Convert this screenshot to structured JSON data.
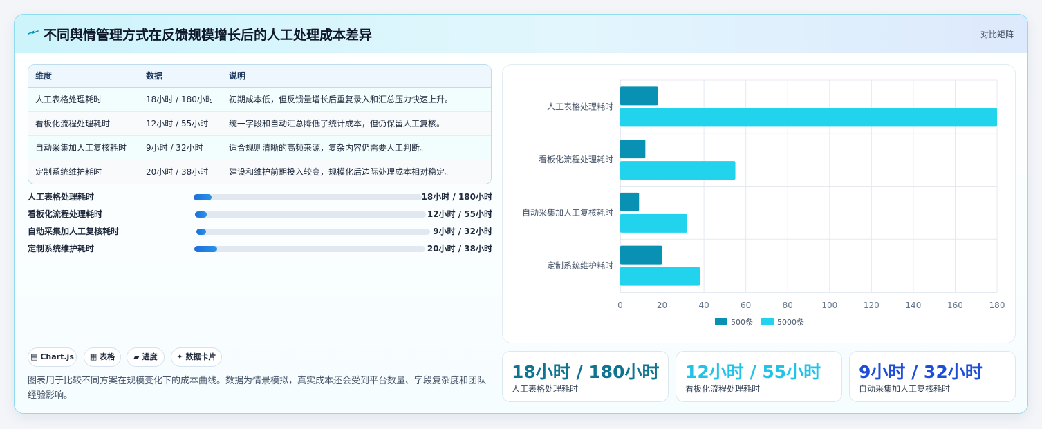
{
  "header": {
    "title": "不同舆情管理方式在反馈规模增长后的人工处理成本差异",
    "right_link": "对比矩阵",
    "icon": "sparkle-icon"
  },
  "table": {
    "columns": [
      "维度",
      "数据",
      "说明"
    ],
    "rows": [
      {
        "name": "人工表格处理耗时",
        "value": "18小时 / 180小时",
        "desc": "初期成本低，但反馈量增长后重复录入和汇总压力快速上升。"
      },
      {
        "name": "看板化流程处理耗时",
        "value": "12小时 / 55小时",
        "desc": "统一字段和自动汇总降低了统计成本，但仍保留人工复核。"
      },
      {
        "name": "自动采集加人工复核耗时",
        "value": "9小时 / 32小时",
        "desc": "适合规则清晰的高频来源，复杂内容仍需要人工判断。"
      },
      {
        "name": "定制系统维护耗时",
        "value": "20小时 / 38小时",
        "desc": "建设和维护前期投入较高，规模化后边际处理成本相对稳定。"
      }
    ]
  },
  "progress": [
    {
      "label": "人工表格处理耗时",
      "value": "18小时 / 180小时",
      "fraction": 0.08
    },
    {
      "label": "看板化流程处理耗时",
      "value": "12小时 / 55小时",
      "fraction": 0.05
    },
    {
      "label": "自动采集加人工复核耗时",
      "value": "9小时 / 32小时",
      "fraction": 0.04
    },
    {
      "label": "定制系统维护耗时",
      "value": "20小时 / 38小时",
      "fraction": 0.1
    }
  ],
  "tags": [
    {
      "icon": "grid-icon",
      "glyph": "▤",
      "label": "Chart.js"
    },
    {
      "icon": "table-icon",
      "glyph": "▦",
      "label": "表格"
    },
    {
      "icon": "progress-icon",
      "glyph": "▰",
      "label": "进度"
    },
    {
      "icon": "card-icon",
      "glyph": "✦",
      "label": "数据卡片"
    }
  ],
  "note": "图表用于比较不同方案在规模变化下的成本曲线。数据为情景模拟，真实成本还会受到平台数量、字段复杂度和团队经验影响。",
  "chart_data": {
    "type": "bar",
    "orientation": "horizontal",
    "categories": [
      "人工表格处理耗时",
      "看板化流程处理耗时",
      "自动采集加人工复核耗时",
      "定制系统维护耗时"
    ],
    "series": [
      {
        "name": "500条",
        "values": [
          18,
          12,
          9,
          20
        ],
        "color": "#0891b2"
      },
      {
        "name": "5000条",
        "values": [
          180,
          55,
          32,
          38
        ],
        "color": "#22d3ee"
      }
    ],
    "xlim": [
      0,
      180
    ],
    "xticks": [
      0,
      20,
      40,
      60,
      80,
      100,
      120,
      140,
      160,
      180
    ],
    "grid": true,
    "legend": "bottom"
  },
  "stats": [
    {
      "value": "18小时 / 180小时",
      "label": "人工表格处理耗时",
      "color": "#0e7490"
    },
    {
      "value": "12小时 / 55小时",
      "label": "看板化流程处理耗时",
      "color": "#22c3e6"
    },
    {
      "value": "9小时 / 32小时",
      "label": "自动采集加人工复核耗时",
      "color": "#1d4ed8"
    }
  ]
}
